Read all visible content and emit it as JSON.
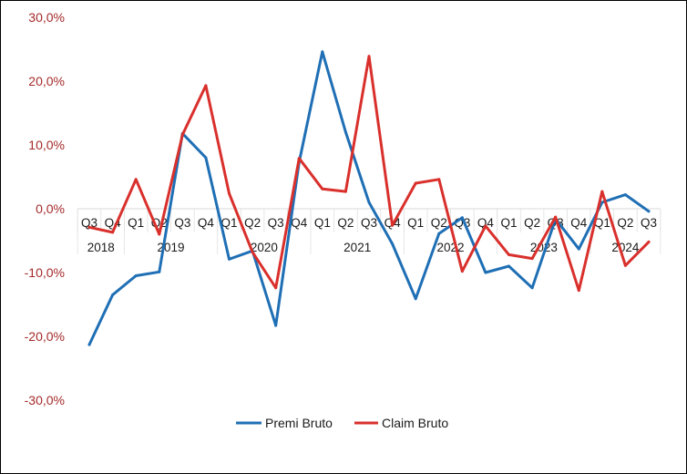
{
  "chart_data": {
    "type": "line",
    "title": "",
    "xlabel": "",
    "ylabel": "",
    "ylim": [
      -30,
      30
    ],
    "y_ticks": [
      "30,0%",
      "20,0%",
      "10,0%",
      "0,0%",
      "-10,0%",
      "-20,0%",
      "-30,0%"
    ],
    "y_tick_values": [
      30,
      20,
      10,
      0,
      -10,
      -20,
      -30
    ],
    "categories": [
      "Q3",
      "Q4",
      "Q1",
      "Q2",
      "Q3",
      "Q4",
      "Q1",
      "Q2",
      "Q3",
      "Q4",
      "Q1",
      "Q2",
      "Q3",
      "Q4",
      "Q1",
      "Q2",
      "Q3",
      "Q4",
      "Q1",
      "Q2",
      "Q3",
      "Q4",
      "Q1",
      "Q2",
      "Q3"
    ],
    "years": [
      {
        "label": "2018",
        "start": 0,
        "end": 1
      },
      {
        "label": "2019",
        "start": 2,
        "end": 5
      },
      {
        "label": "2020",
        "start": 6,
        "end": 9
      },
      {
        "label": "2021",
        "start": 10,
        "end": 13
      },
      {
        "label": "2022",
        "start": 14,
        "end": 17
      },
      {
        "label": "2023",
        "start": 18,
        "end": 21
      },
      {
        "label": "2024",
        "start": 22,
        "end": 24
      }
    ],
    "series": [
      {
        "name": "Premi Bruto",
        "color": "#1f6fb5",
        "values": [
          -21.3,
          -13.5,
          -10.5,
          -9.9,
          11.8,
          8.0,
          -7.9,
          -6.6,
          -18.3,
          7.3,
          24.6,
          12.0,
          1.0,
          -5.5,
          -14.1,
          -3.9,
          -1.4,
          -10.0,
          -9.0,
          -12.4,
          -1.6,
          -6.3,
          1.0,
          2.2,
          -0.4
        ]
      },
      {
        "name": "Claim Bruto",
        "color": "#d9302c",
        "values": [
          -2.9,
          -3.7,
          4.6,
          -4.0,
          11.6,
          19.3,
          2.4,
          -6.8,
          -12.4,
          7.9,
          3.1,
          2.7,
          23.9,
          -2.6,
          4.0,
          4.6,
          -9.8,
          -2.7,
          -7.2,
          -7.8,
          -1.3,
          -12.8,
          2.7,
          -8.9,
          -5.2
        ]
      }
    ],
    "grid": false,
    "legend_position": "bottom"
  }
}
